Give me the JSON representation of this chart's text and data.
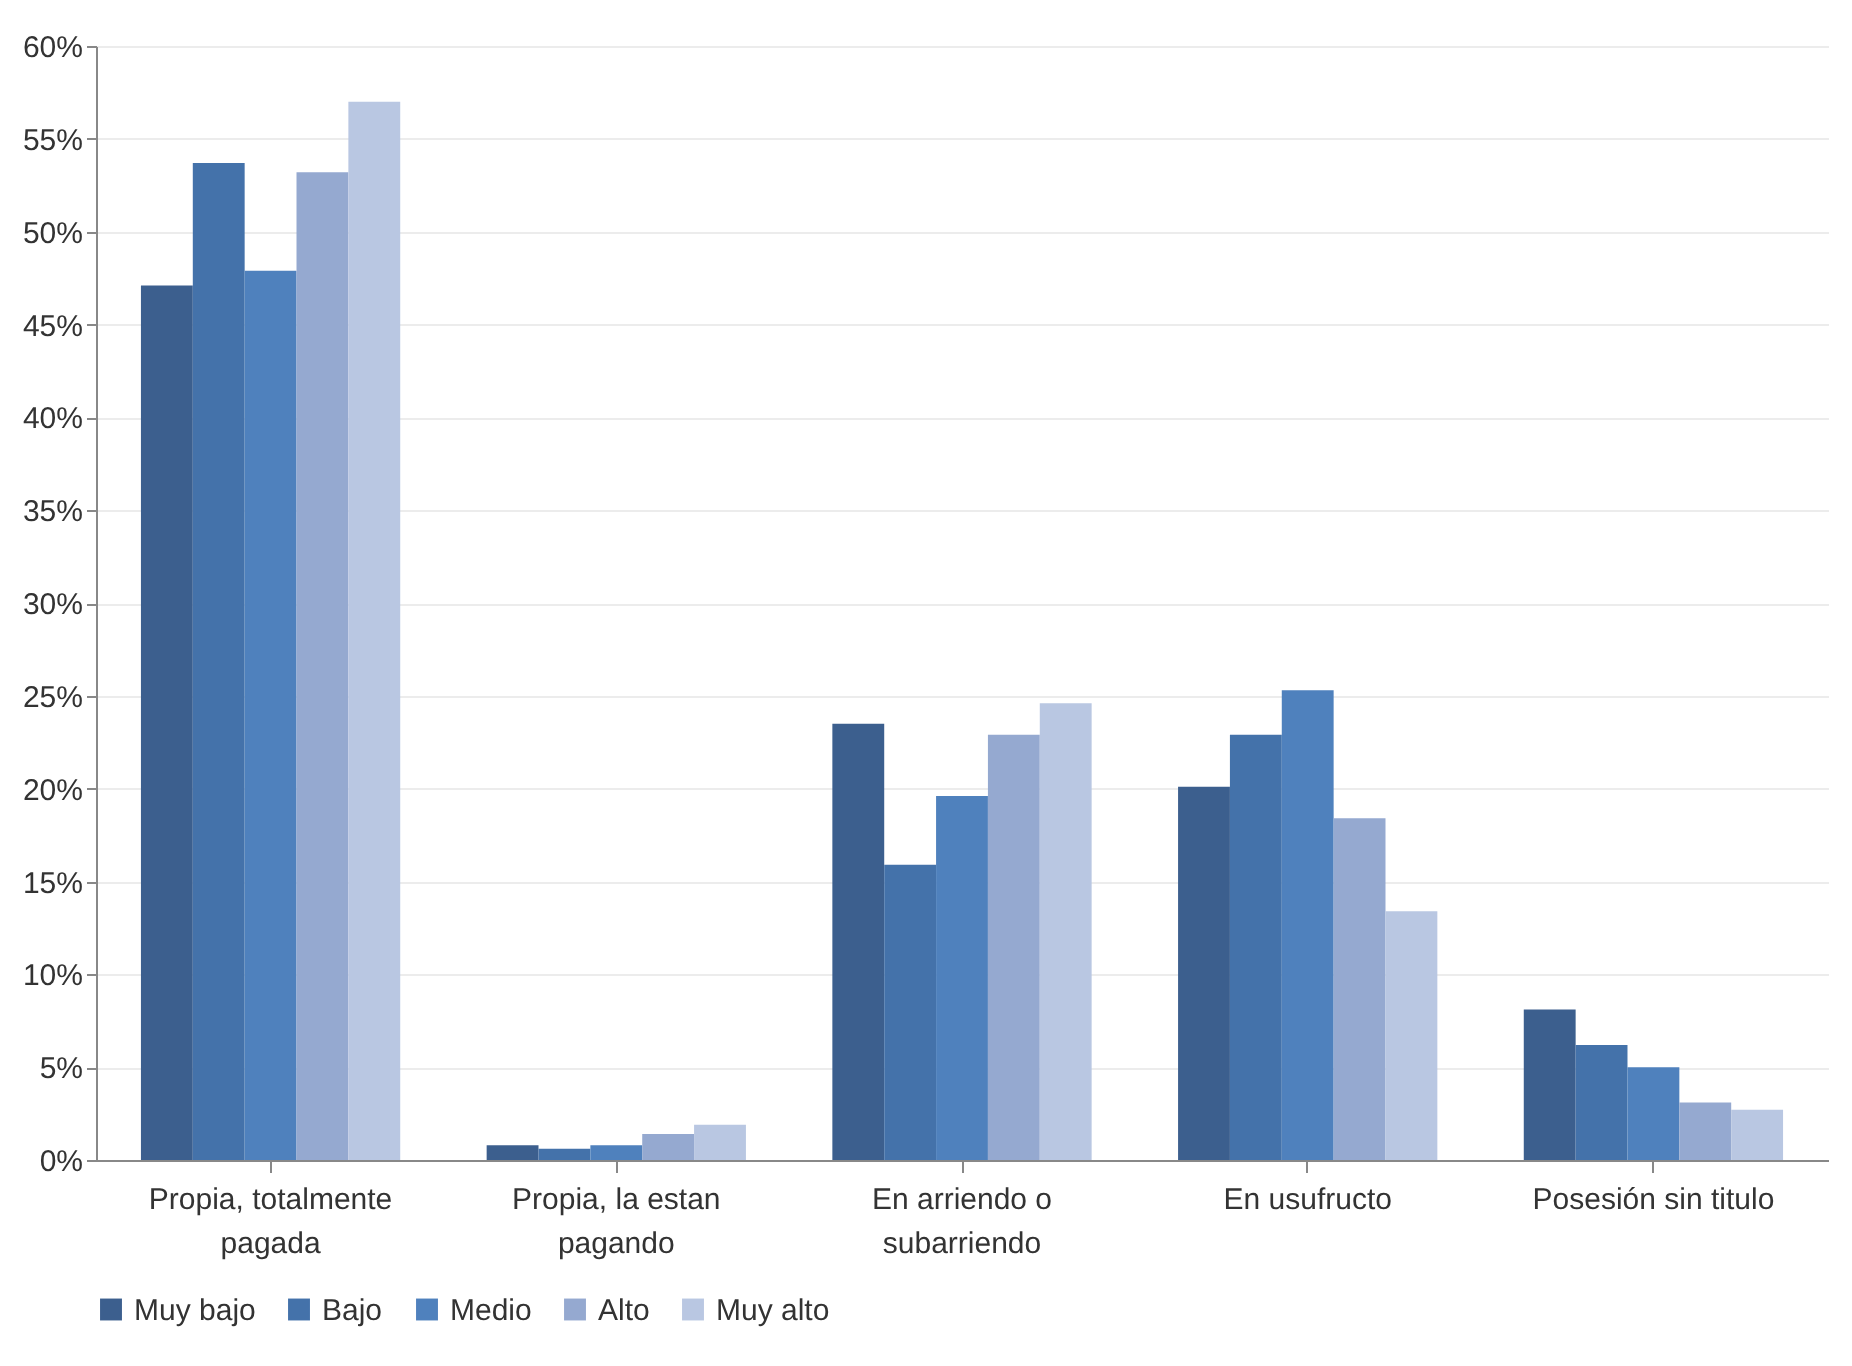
{
  "chart_data": {
    "type": "bar",
    "categories": [
      "Propia, totalmente pagada",
      "Propia, la estan pagando",
      "En arriendo o subarriendo",
      "En usufructo",
      "Posesión sin titulo"
    ],
    "series": [
      {
        "name": "Muy bajo",
        "color": "#3c5f8e",
        "values": [
          47.1,
          0.8,
          23.5,
          20.1,
          8.1
        ]
      },
      {
        "name": "Bajo",
        "color": "#4472aa",
        "values": [
          53.7,
          0.6,
          15.9,
          22.9,
          6.2
        ]
      },
      {
        "name": "Medio",
        "color": "#4f81bd",
        "values": [
          47.9,
          0.8,
          19.6,
          25.3,
          5.0
        ]
      },
      {
        "name": "Alto",
        "color": "#95a9d0",
        "values": [
          53.2,
          1.4,
          22.9,
          18.4,
          3.1
        ]
      },
      {
        "name": "Muy alto",
        "color": "#b9c7e2",
        "values": [
          57.0,
          1.9,
          24.6,
          13.4,
          2.7
        ]
      }
    ],
    "ylim": [
      0,
      60
    ],
    "yticks": [
      {
        "value": 0,
        "label": "0%"
      },
      {
        "value": 5,
        "label": "5%"
      },
      {
        "value": 10,
        "label": "10%"
      },
      {
        "value": 15,
        "label": "15%"
      },
      {
        "value": 20,
        "label": "20%"
      },
      {
        "value": 25,
        "label": "25%"
      },
      {
        "value": 30,
        "label": "30%"
      },
      {
        "value": 35,
        "label": "35%"
      },
      {
        "value": 40,
        "label": "40%"
      },
      {
        "value": 45,
        "label": "45%"
      },
      {
        "value": 50,
        "label": "50%"
      },
      {
        "value": 55,
        "label": "55%"
      },
      {
        "value": 60,
        "label": "60%"
      }
    ],
    "grid": "y",
    "legend": "bottom"
  }
}
